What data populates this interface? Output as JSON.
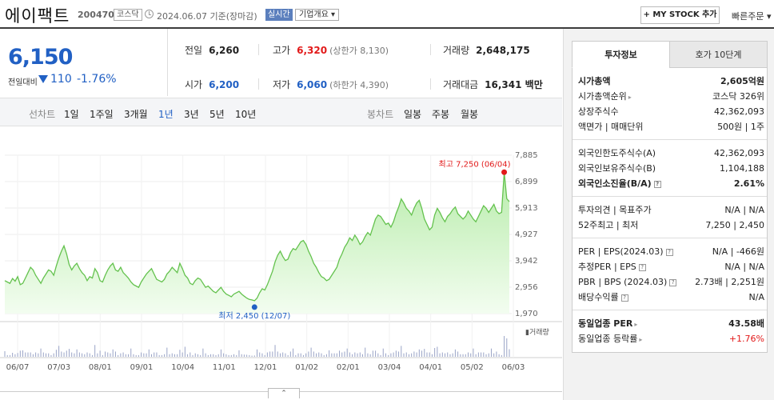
{
  "header": {
    "name": "에이팩트",
    "code": "200470",
    "market": "코스닥",
    "date": "2024.06.07 기준(장마감)",
    "realtime": "실시간",
    "corp_info": "기업개요 ▾",
    "mystock": "+ MY STOCK 추가",
    "quick_order": "빠른주문 ▾"
  },
  "price": {
    "now": "6,150",
    "compare_label": "전일대비",
    "change": "110",
    "change_pct": "-1.76%"
  },
  "stats": {
    "prev_label": "전일",
    "prev": "6,260",
    "high_label": "고가",
    "high": "6,320",
    "upper_limit": "(상한가 8,130)",
    "volume_label": "거래량",
    "volume": "2,648,175",
    "open_label": "시가",
    "open": "6,200",
    "low_label": "저가",
    "low": "6,060",
    "lower_limit": "(하한가 4,390)",
    "amount_label": "거래대금",
    "amount": "16,341 백만"
  },
  "tabs": {
    "line_label": "선차트",
    "periods": [
      "1일",
      "1주일",
      "3개월",
      "1년",
      "3년",
      "5년",
      "10년"
    ],
    "active_period": "1년",
    "candle_label": "봉차트",
    "candles": [
      "일봉",
      "주봉",
      "월봉"
    ]
  },
  "chart_data": {
    "type": "area",
    "y_ticks": [
      "7,885",
      "6,899",
      "5,913",
      "4,927",
      "3,942",
      "2,956",
      "1,970"
    ],
    "ylim": [
      1970,
      7885
    ],
    "x_ticks": [
      "06/07",
      "07/03",
      "08/01",
      "09/01",
      "10/04",
      "11/01",
      "12/01",
      "01/02",
      "02/01",
      "03/04",
      "04/01",
      "05/02",
      "06/03"
    ],
    "high_annotation": "최고 7,250 (06/04)",
    "low_annotation": "최저 2,450 (12/07)",
    "high_value": 7250,
    "low_value": 2450,
    "volume_label": "▮거래량",
    "grid": true,
    "series_values": [
      3200,
      3150,
      3100,
      3280,
      3180,
      3350,
      3050,
      3100,
      3300,
      3500,
      3700,
      3600,
      3400,
      3250,
      3100,
      3300,
      3450,
      3600,
      3550,
      3400,
      3750,
      4050,
      4300,
      4500,
      4200,
      3800,
      3600,
      3750,
      3850,
      3650,
      3500,
      3400,
      3200,
      3350,
      3300,
      3650,
      3500,
      3200,
      3150,
      3400,
      3600,
      3750,
      3850,
      3600,
      3550,
      3700,
      3500,
      3400,
      3300,
      3150,
      3050,
      3000,
      2950,
      3150,
      3300,
      3450,
      3550,
      3650,
      3450,
      3250,
      3200,
      3150,
      3250,
      3450,
      3550,
      3700,
      3600,
      3500,
      3850,
      3650,
      3400,
      3300,
      3100,
      3050,
      3200,
      3300,
      3250,
      3100,
      2950,
      3000,
      2900,
      2800,
      2750,
      2850,
      2950,
      2800,
      2700,
      2650,
      2600,
      2700,
      2750,
      2800,
      2700,
      2620,
      2550,
      2500,
      2480,
      2450,
      2550,
      2750,
      2900,
      2850,
      3050,
      3300,
      3550,
      3900,
      4150,
      4300,
      4100,
      3950,
      4000,
      4250,
      4400,
      4350,
      4500,
      4650,
      4700,
      4550,
      4300,
      4100,
      3850,
      3700,
      3500,
      3350,
      3300,
      3200,
      3250,
      3400,
      3550,
      3700,
      4000,
      4200,
      4450,
      4600,
      4800,
      4700,
      4900,
      4750,
      4550,
      4650,
      4850,
      5000,
      4900,
      5200,
      5500,
      5650,
      5600,
      5450,
      5300,
      5350,
      5200,
      5400,
      5700,
      5950,
      6250,
      6100,
      5900,
      5800,
      5650,
      5900,
      6100,
      6200,
      5900,
      5500,
      5300,
      5100,
      5200,
      5650,
      5900,
      5750,
      5550,
      5400,
      5600,
      5700,
      5850,
      5950,
      5700,
      5600,
      5500,
      5600,
      5800,
      5650,
      5500,
      5400,
      5600,
      5800,
      6000,
      5900,
      5750,
      5900,
      6050,
      5800,
      5700,
      5750,
      7250,
      6260,
      6150
    ]
  },
  "info": {
    "tab_active": "투자정보",
    "tab_other": "호가 10단계",
    "rows": [
      {
        "k": "시가총액",
        "v": "2,605억원"
      },
      {
        "k": "시가총액순위",
        "v": "코스닥 326위"
      },
      {
        "k": "상장주식수",
        "v": "42,362,093"
      },
      {
        "k": "액면가 | 매매단위",
        "v": "500원 | 1주"
      },
      {
        "k": "외국인한도주식수(A)",
        "v": "42,362,093"
      },
      {
        "k": "외국인보유주식수(B)",
        "v": "1,104,188"
      },
      {
        "k": "외국인소진율(B/A)",
        "v": "2.61%"
      },
      {
        "k": "투자의견 | 목표주가",
        "v": "N/A | N/A"
      },
      {
        "k": "52주최고 | 최저",
        "v": "7,250 | 2,450"
      },
      {
        "k": "PER | EPS(2024.03)",
        "v": "N/A | -466원"
      },
      {
        "k": "추정PER | EPS",
        "v": "N/A | N/A"
      },
      {
        "k": "PBR | BPS (2024.03)",
        "v": "2.73배 | 2,251원"
      },
      {
        "k": "배당수익률",
        "v": "N/A"
      },
      {
        "k": "동일업종 PER",
        "v": "43.58배"
      },
      {
        "k": "동일업종 등락률",
        "v": "+1.76%"
      }
    ],
    "accent_red": "#e21a1a",
    "accent_blue": "#2160c4"
  }
}
